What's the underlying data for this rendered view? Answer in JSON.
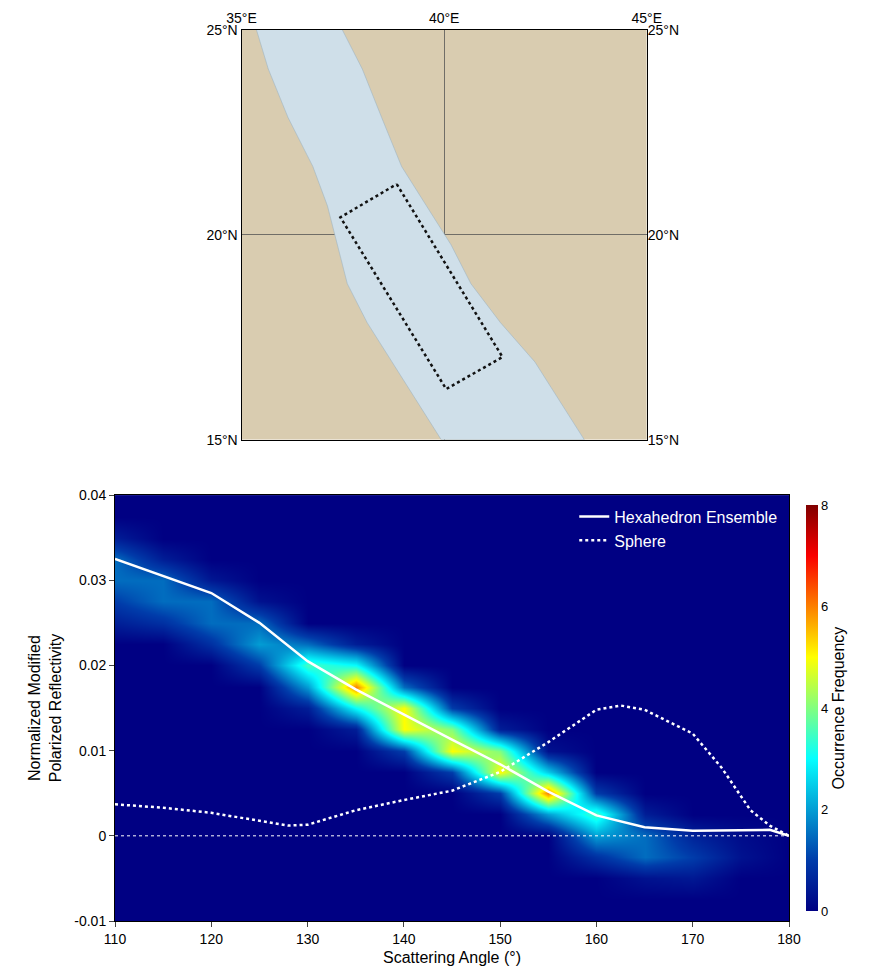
{
  "chart_data": [
    {
      "type": "map",
      "xlim": [
        35,
        45
      ],
      "ylim": [
        15,
        25
      ],
      "xticks": [
        {
          "value": 35,
          "label": "35°E"
        },
        {
          "value": 40,
          "label": "40°E"
        },
        {
          "value": 45,
          "label": "45°E"
        }
      ],
      "yticks": [
        {
          "value": 15,
          "label": "15°N"
        },
        {
          "value": 20,
          "label": "20°N"
        },
        {
          "value": 25,
          "label": "25°N"
        }
      ],
      "grid": true,
      "land_color": "#d9ccb0",
      "sea": {
        "color": "#cfdfe9",
        "lon": [
          35.37,
          35.66,
          36.15,
          36.76,
          37.12,
          37.37,
          37.61,
          38.1,
          38.71,
          39.32,
          39.93,
          43.46,
          42.85,
          42.24,
          41.39,
          40.66,
          40.17,
          39.56,
          38.95,
          38.46,
          37.98,
          37.49
        ],
        "lat": [
          25.0,
          24.05,
          22.86,
          21.67,
          20.71,
          19.76,
          18.81,
          17.86,
          16.9,
          15.95,
          15.0,
          15.0,
          15.95,
          16.9,
          17.86,
          18.81,
          19.76,
          20.71,
          21.67,
          22.86,
          24.05,
          25.0
        ]
      },
      "study_box": {
        "color": "#111111",
        "line_style": "dotted",
        "lon": [
          38.83,
          41.44,
          40.05,
          37.44,
          38.83
        ],
        "lat": [
          21.24,
          17.02,
          16.24,
          20.43,
          21.24
        ]
      }
    },
    {
      "type": "heatmap",
      "xlabel": "Scattering Angle (°)",
      "ylabel": "Normalized Modified\nPolarized Reflectivity",
      "xlim": [
        110,
        180
      ],
      "xticks": [
        110,
        120,
        130,
        140,
        150,
        160,
        170,
        180
      ],
      "ylim": [
        -0.01,
        0.04
      ],
      "yticks": [
        -0.01,
        0,
        0.01,
        0.02,
        0.03,
        0.04
      ],
      "colorbar_title": "Occurrence Frequency",
      "zlim": [
        0,
        8
      ],
      "zticks": [
        0,
        2,
        4,
        6,
        8
      ],
      "x": [
        110,
        115,
        120,
        125,
        130,
        135,
        140,
        145,
        150,
        155,
        160,
        165,
        170,
        175,
        180
      ],
      "y": [
        -0.01,
        -0.0075,
        -0.005,
        -0.0025,
        0,
        0.0025,
        0.005,
        0.0075,
        0.01,
        0.0125,
        0.015,
        0.0175,
        0.02,
        0.0225,
        0.025,
        0.0275,
        0.03,
        0.0325,
        0.035,
        0.0375,
        0.04
      ],
      "z": [
        [
          0,
          0,
          0,
          0,
          0,
          0,
          0,
          0,
          0,
          0,
          0,
          0,
          0,
          0,
          0
        ],
        [
          0,
          0,
          0,
          0,
          0,
          0,
          0,
          0,
          0,
          0,
          0,
          0,
          0,
          0,
          0
        ],
        [
          0,
          0,
          0,
          0,
          0,
          0,
          0,
          0,
          0,
          0,
          0,
          0.3,
          0.4,
          0,
          0
        ],
        [
          0,
          0,
          0,
          0,
          0,
          0,
          0,
          0,
          0,
          0,
          0.8,
          1.5,
          1,
          0.3,
          0
        ],
        [
          0,
          0,
          0,
          0,
          0,
          0,
          0,
          0,
          0,
          0,
          2,
          1.5,
          0.6,
          0.2,
          0
        ],
        [
          0,
          0,
          0,
          0,
          0,
          0,
          0,
          0,
          0,
          2,
          3.5,
          0.5,
          0,
          0,
          0
        ],
        [
          0,
          0,
          0,
          0,
          0,
          0,
          0,
          0,
          1,
          6,
          1,
          0,
          0,
          0,
          0
        ],
        [
          0,
          0,
          0,
          0,
          0,
          0,
          0,
          1,
          5,
          2.5,
          0,
          0,
          0,
          0,
          0
        ],
        [
          0,
          0,
          0,
          0,
          0,
          0,
          1,
          5,
          4,
          0.3,
          0,
          0,
          0,
          0,
          0
        ],
        [
          0,
          0,
          0,
          0,
          0,
          0.5,
          5,
          4,
          0.5,
          0,
          0,
          0,
          0,
          0,
          0
        ],
        [
          0,
          0,
          0,
          0,
          0.5,
          3,
          5,
          1,
          0,
          0,
          0,
          0,
          0,
          0,
          0
        ],
        [
          0,
          0,
          0,
          0,
          2,
          6,
          1.5,
          0,
          0,
          0,
          0,
          0,
          0,
          0,
          0
        ],
        [
          0,
          0,
          0,
          1,
          3.5,
          3,
          0,
          0,
          0,
          0,
          0,
          0,
          0,
          0,
          0
        ],
        [
          0,
          0,
          0.8,
          2,
          1.5,
          0.5,
          0,
          0,
          0,
          0,
          0,
          0,
          0,
          0,
          0
        ],
        [
          0.5,
          0.8,
          1.5,
          1.5,
          0,
          0,
          0,
          0,
          0,
          0,
          0,
          0,
          0,
          0,
          0
        ],
        [
          1,
          1.5,
          1.5,
          0.3,
          0,
          0,
          0,
          0,
          0,
          0,
          0,
          0,
          0,
          0,
          0
        ],
        [
          1.5,
          1.5,
          0.4,
          0,
          0,
          0,
          0,
          0,
          0,
          0,
          0,
          0,
          0,
          0,
          0
        ],
        [
          1.5,
          0.5,
          0,
          0,
          0,
          0,
          0,
          0,
          0,
          0,
          0,
          0,
          0,
          0,
          0
        ],
        [
          0.5,
          0,
          0,
          0,
          0,
          0,
          0,
          0,
          0,
          0,
          0,
          0,
          0,
          0,
          0
        ],
        [
          0,
          0,
          0,
          0,
          0,
          0,
          0,
          0,
          0,
          0,
          0,
          0,
          0,
          0,
          0
        ],
        [
          0,
          0,
          0,
          0,
          0,
          0,
          0,
          0,
          0,
          0,
          0,
          0,
          0,
          0,
          0
        ]
      ],
      "reference_line": {
        "y": 0,
        "color": "#ffffff",
        "line_style": "dotted"
      },
      "series": [
        {
          "name": "Hexahedron Ensemble",
          "type": "line",
          "color": "#ffffff",
          "line_style": "solid",
          "x": [
            110,
            115,
            120,
            125,
            130,
            135,
            140,
            145,
            150,
            155,
            160,
            165,
            170,
            175,
            178,
            180
          ],
          "values": [
            0.0325,
            0.0305,
            0.0285,
            0.025,
            0.0205,
            0.0172,
            0.0142,
            0.0113,
            0.0084,
            0.0052,
            0.0024,
            0.001,
            0.0006,
            0.0007,
            0.0007,
            0
          ]
        },
        {
          "name": "Sphere",
          "type": "line",
          "color": "#ffffff",
          "line_style": "dotted",
          "x": [
            110,
            115,
            120,
            125,
            128,
            130,
            135,
            140,
            145,
            150,
            155,
            160,
            162.5,
            165,
            170,
            173,
            176,
            178,
            180
          ],
          "values": [
            0.0037,
            0.0033,
            0.0027,
            0.0018,
            0.0012,
            0.0013,
            0.003,
            0.0042,
            0.0053,
            0.0075,
            0.011,
            0.0148,
            0.0153,
            0.0148,
            0.012,
            0.008,
            0.003,
            0.0012,
            0
          ]
        }
      ],
      "legend": "upper right",
      "grid": false
    }
  ]
}
